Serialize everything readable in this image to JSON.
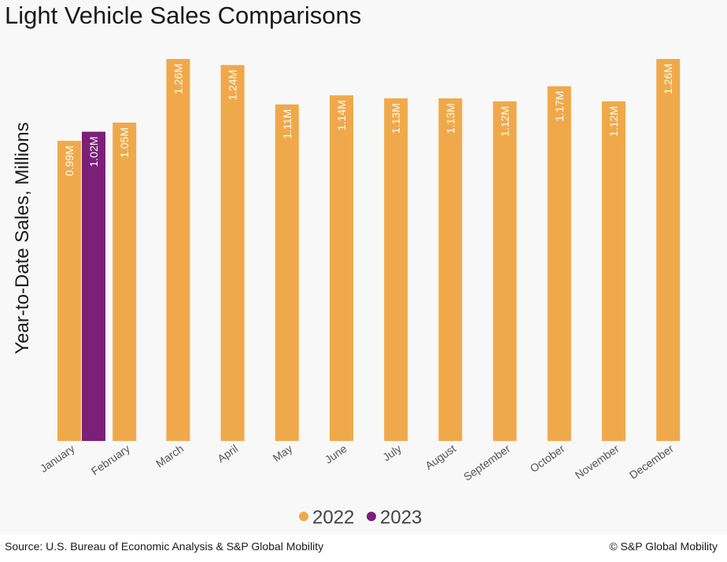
{
  "chart_data": {
    "type": "bar",
    "title": "Light Vehicle Sales Comparisons",
    "ylabel": "Year-to-Date Sales, Millions",
    "xlabel": "",
    "ylim": [
      0,
      1.26
    ],
    "categories": [
      "January",
      "February",
      "March",
      "April",
      "May",
      "June",
      "July",
      "August",
      "September",
      "October",
      "November",
      "December"
    ],
    "series": [
      {
        "name": "2022",
        "color": "#f0a94a",
        "values": [
          0.99,
          1.05,
          1.26,
          1.24,
          1.11,
          1.14,
          1.13,
          1.13,
          1.12,
          1.17,
          1.12,
          1.26
        ],
        "labels": [
          "0.99M",
          "1.05M",
          "1.26M",
          "1.24M",
          "1.11M",
          "1.14M",
          "1.13M",
          "1.13M",
          "1.12M",
          "1.17M",
          "1.12M",
          "1.26M"
        ]
      },
      {
        "name": "2023",
        "color": "#7b2079",
        "values": [
          1.02,
          null,
          null,
          null,
          null,
          null,
          null,
          null,
          null,
          null,
          null,
          null
        ],
        "labels": [
          "1.02M",
          null,
          null,
          null,
          null,
          null,
          null,
          null,
          null,
          null,
          null,
          null
        ]
      }
    ],
    "legend_position": "bottom-center",
    "grid": false
  },
  "footer": {
    "source": "Source: U.S. Bureau of Economic Analysis & S&P Global Mobility",
    "copyright": "© S&P Global Mobility"
  }
}
